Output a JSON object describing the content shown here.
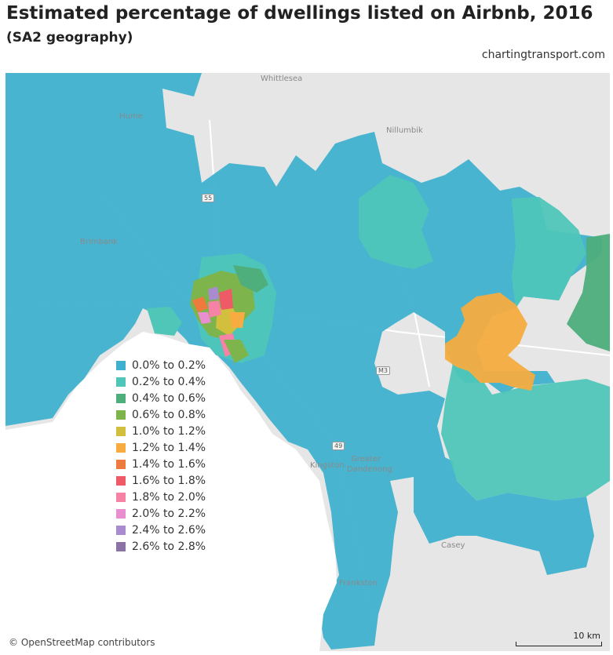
{
  "header": {
    "title": "Estimated percentage of dwellings listed on Airbnb, 2016",
    "subtitle": "(SA2 geography)",
    "source": "chartingtransport.com"
  },
  "map": {
    "attribution": "© OpenStreetMap contributors",
    "scale_label": "10 km",
    "places": {
      "whittlesea": "Whittlesea",
      "nillumbik": "Nillumbik",
      "dandenong": "Dandenong",
      "casey": "Casey",
      "frankston": "Frankston",
      "kingston": "Kingston",
      "greater": "Greater",
      "brimbank": "Brimbank",
      "hume": "Hume"
    },
    "road_shields": {
      "m55": "55",
      "m3": "M3",
      "m49": "49"
    }
  },
  "legend": {
    "items": [
      {
        "label": "0.0% to 0.2%",
        "color": "#3fb1cf"
      },
      {
        "label": "0.2% to 0.4%",
        "color": "#4fc6b8"
      },
      {
        "label": "0.4% to 0.6%",
        "color": "#4eae7c"
      },
      {
        "label": "0.6% to 0.8%",
        "color": "#7db44c"
      },
      {
        "label": "1.0% to 1.2%",
        "color": "#d2bf3d"
      },
      {
        "label": "1.2% to 1.4%",
        "color": "#f6ac40"
      },
      {
        "label": "1.4% to 1.6%",
        "color": "#ee7a3d"
      },
      {
        "label": "1.6% to 1.8%",
        "color": "#ee5a66"
      },
      {
        "label": "1.8% to 2.0%",
        "color": "#f682a6"
      },
      {
        "label": "2.0% to 2.2%",
        "color": "#e98fd0"
      },
      {
        "label": "2.4% to 2.6%",
        "color": "#a98bd0"
      },
      {
        "label": "2.6% to 2.8%",
        "color": "#8b73a8"
      }
    ]
  }
}
